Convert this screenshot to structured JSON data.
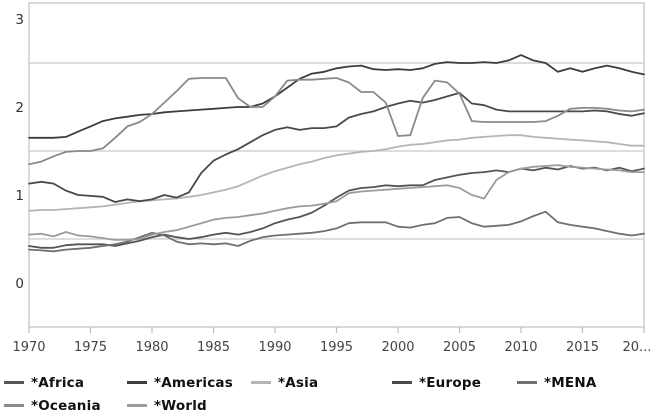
{
  "chart_data": {
    "type": "line",
    "title": "",
    "xlabel": "",
    "ylabel": "",
    "xlim": [
      1970,
      2020
    ],
    "ylim": [
      -0.5,
      3.2
    ],
    "x_start_year": 1970,
    "x_tick_years": [
      1970,
      1975,
      1980,
      1985,
      1990,
      1995,
      2000,
      2005,
      2010,
      2015,
      2020
    ],
    "x_tick_labels": [
      "1970",
      "1975",
      "1980",
      "1985",
      "1990",
      "1995",
      "2000",
      "2005",
      "2010",
      "2015",
      "20..."
    ],
    "y_ticks": [
      0,
      1,
      2,
      3
    ],
    "y_tick_labels": [
      "0",
      "1",
      "2",
      "3"
    ],
    "gridlines": [
      0.5,
      1.5,
      2.5
    ],
    "grid": "partial-horizontal",
    "legend_position": "bottom",
    "series": [
      {
        "name": "*Africa",
        "color": "#555555",
        "values": [
          0.42,
          0.4,
          0.4,
          0.43,
          0.44,
          0.44,
          0.44,
          0.42,
          0.45,
          0.48,
          0.52,
          0.55,
          0.52,
          0.5,
          0.52,
          0.55,
          0.57,
          0.55,
          0.58,
          0.62,
          0.68,
          0.72,
          0.75,
          0.8,
          0.88,
          0.97,
          1.05,
          1.08,
          1.09,
          1.11,
          1.1,
          1.11,
          1.11,
          1.17,
          1.2,
          1.23,
          1.25,
          1.26,
          1.28,
          1.26,
          1.3,
          1.28,
          1.31,
          1.29,
          1.33,
          1.3,
          1.31,
          1.28,
          1.31,
          1.27,
          1.3
        ]
      },
      {
        "name": "*Americas",
        "color": "#3d3d3d",
        "values": [
          1.65,
          1.65,
          1.65,
          1.66,
          1.72,
          1.78,
          1.84,
          1.87,
          1.89,
          1.91,
          1.92,
          1.94,
          1.95,
          1.96,
          1.97,
          1.98,
          1.99,
          2.0,
          2.0,
          2.04,
          2.12,
          2.22,
          2.32,
          2.38,
          2.4,
          2.44,
          2.46,
          2.47,
          2.43,
          2.42,
          2.43,
          2.42,
          2.44,
          2.49,
          2.51,
          2.5,
          2.5,
          2.51,
          2.5,
          2.53,
          2.59,
          2.53,
          2.5,
          2.4,
          2.44,
          2.4,
          2.44,
          2.47,
          2.44,
          2.4,
          2.37
        ]
      },
      {
        "name": "*Asia",
        "color": "#b5b5b5",
        "values": [
          0.82,
          0.83,
          0.83,
          0.84,
          0.85,
          0.86,
          0.87,
          0.89,
          0.91,
          0.93,
          0.94,
          0.95,
          0.96,
          0.98,
          1.0,
          1.03,
          1.06,
          1.1,
          1.16,
          1.22,
          1.27,
          1.31,
          1.35,
          1.38,
          1.42,
          1.45,
          1.47,
          1.49,
          1.5,
          1.52,
          1.55,
          1.57,
          1.58,
          1.6,
          1.62,
          1.63,
          1.65,
          1.66,
          1.67,
          1.68,
          1.68,
          1.66,
          1.65,
          1.64,
          1.63,
          1.62,
          1.61,
          1.6,
          1.58,
          1.56,
          1.56
        ]
      },
      {
        "name": "*Europe",
        "color": "#4a4a4a",
        "values": [
          1.13,
          1.15,
          1.13,
          1.05,
          1.0,
          0.99,
          0.98,
          0.92,
          0.95,
          0.93,
          0.95,
          1.0,
          0.97,
          1.03,
          1.25,
          1.39,
          1.46,
          1.52,
          1.6,
          1.68,
          1.74,
          1.77,
          1.74,
          1.76,
          1.76,
          1.78,
          1.88,
          1.92,
          1.95,
          2.0,
          2.04,
          2.07,
          2.05,
          2.08,
          2.12,
          2.16,
          2.04,
          2.02,
          1.97,
          1.95,
          1.95,
          1.95,
          1.95,
          1.95,
          1.95,
          1.95,
          1.96,
          1.95,
          1.92,
          1.9,
          1.93
        ]
      },
      {
        "name": "*MENA",
        "color": "#707070",
        "values": [
          0.38,
          0.37,
          0.36,
          0.38,
          0.39,
          0.4,
          0.42,
          0.44,
          0.47,
          0.52,
          0.57,
          0.54,
          0.47,
          0.44,
          0.45,
          0.44,
          0.45,
          0.42,
          0.48,
          0.52,
          0.54,
          0.55,
          0.56,
          0.57,
          0.59,
          0.62,
          0.68,
          0.69,
          0.69,
          0.69,
          0.64,
          0.63,
          0.66,
          0.68,
          0.74,
          0.75,
          0.68,
          0.64,
          0.65,
          0.66,
          0.7,
          0.76,
          0.81,
          0.69,
          0.66,
          0.64,
          0.62,
          0.59,
          0.56,
          0.54,
          0.56
        ]
      },
      {
        "name": "*Oceania",
        "color": "#8a8a8a",
        "values": [
          1.35,
          1.38,
          1.44,
          1.49,
          1.5,
          1.5,
          1.53,
          1.65,
          1.78,
          1.83,
          1.92,
          2.05,
          2.18,
          2.32,
          2.33,
          2.33,
          2.33,
          2.1,
          2.0,
          2.0,
          2.12,
          2.3,
          2.31,
          2.31,
          2.32,
          2.33,
          2.28,
          2.17,
          2.17,
          2.05,
          1.67,
          1.68,
          2.1,
          2.3,
          2.28,
          2.15,
          1.84,
          1.83,
          1.83,
          1.83,
          1.83,
          1.83,
          1.84,
          1.9,
          1.98,
          1.99,
          1.99,
          1.98,
          1.96,
          1.95,
          1.97
        ]
      },
      {
        "name": "*World",
        "color": "#9c9c9c",
        "values": [
          0.55,
          0.56,
          0.53,
          0.58,
          0.54,
          0.53,
          0.51,
          0.49,
          0.49,
          0.5,
          0.55,
          0.58,
          0.6,
          0.64,
          0.68,
          0.72,
          0.74,
          0.75,
          0.77,
          0.79,
          0.82,
          0.85,
          0.87,
          0.88,
          0.9,
          0.93,
          1.02,
          1.04,
          1.05,
          1.06,
          1.07,
          1.08,
          1.09,
          1.1,
          1.11,
          1.08,
          1.0,
          0.96,
          1.17,
          1.26,
          1.3,
          1.32,
          1.33,
          1.34,
          1.32,
          1.31,
          1.3,
          1.29,
          1.28,
          1.26,
          1.26
        ]
      }
    ]
  },
  "colors": {
    "background": "#ffffff",
    "plot_border": "#c6c6c6",
    "gridline": "#d2d2d2",
    "tick_mark": "#bdbdbd",
    "y_label": "#333333",
    "x_label": "#444444",
    "legend_text": "#111111"
  }
}
